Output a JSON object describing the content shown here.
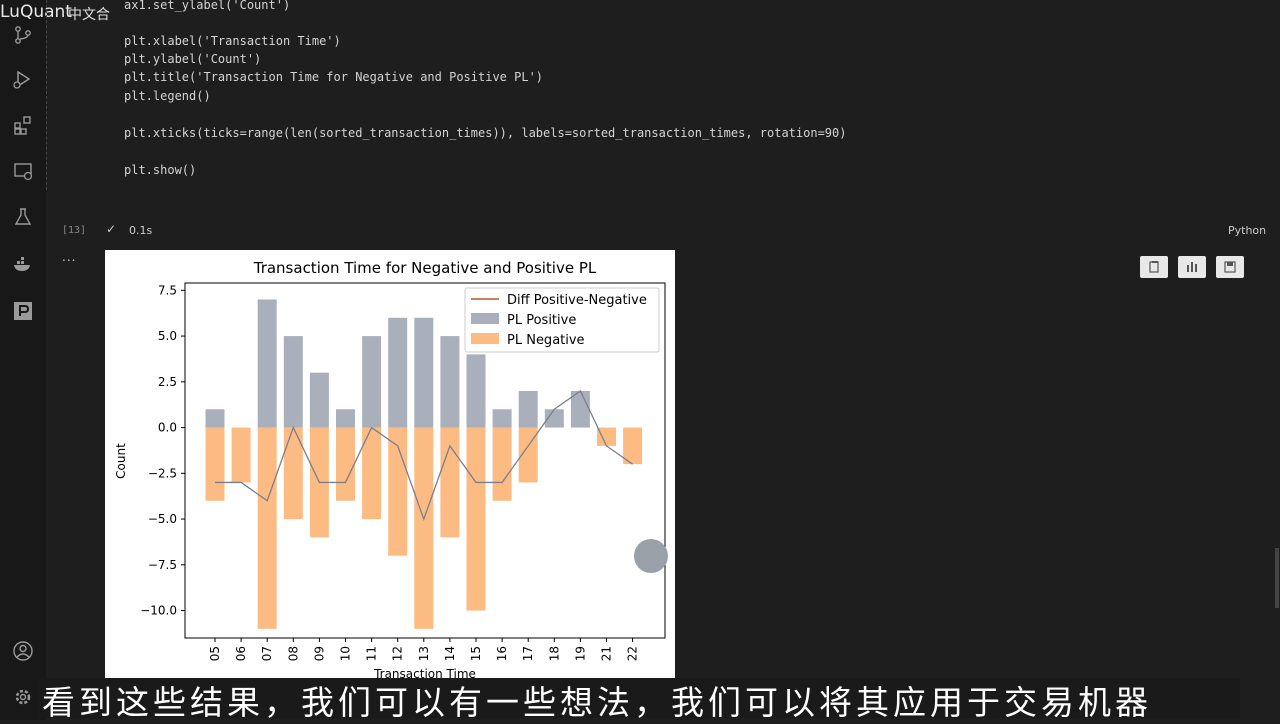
{
  "watermark": {
    "brand": "LuQuant",
    "tag": "中文合"
  },
  "code_lines": [
    "ax1.set_ylabel('Count')",
    "plt.xlabel('Transaction Time')",
    "plt.ylabel('Count')",
    "plt.title('Transaction Time for Negative and Positive PL')",
    "plt.legend()",
    "plt.xticks(ticks=range(len(sorted_transaction_times)), labels=sorted_transaction_times, rotation=90)",
    "plt.show()"
  ],
  "cell": {
    "execution_count": "[13]",
    "status_check": "✓",
    "duration": "0.1s",
    "language": "Python",
    "more": "..."
  },
  "activity_icons": [
    "explorer-icon",
    "search-icon",
    "source-control-icon",
    "run-debug-icon",
    "extensions-icon",
    "remote-explorer-icon",
    "testing-icon",
    "docker-icon",
    "jupyter-icon",
    "account-icon",
    "settings-icon"
  ],
  "output_buttons": [
    "copy-icon",
    "chart-icon",
    "save-icon"
  ],
  "subtitle": "看到这些结果，我们可以有一些想法，我们可以将其应用于交易机器",
  "colors": {
    "positive": "#a9b0bb",
    "negative": "#fdbb84",
    "diff_line": "#7a7f8a",
    "diff_legend": "#b35a28"
  },
  "chart_data": {
    "type": "bar",
    "title": "Transaction Time for Negative and Positive PL",
    "xlabel": "Transaction Time",
    "ylabel": "Count",
    "categories": [
      "05",
      "06",
      "07",
      "08",
      "09",
      "10",
      "11",
      "12",
      "13",
      "14",
      "15",
      "16",
      "17",
      "18",
      "19",
      "21",
      "22"
    ],
    "series": [
      {
        "name": "PL Positive",
        "values": [
          1,
          0,
          7,
          5,
          3,
          1,
          5,
          6,
          6,
          5,
          4,
          1,
          2,
          1,
          2,
          0,
          0
        ]
      },
      {
        "name": "PL Negative",
        "values": [
          -4,
          -3,
          -11,
          -5,
          -6,
          -4,
          -5,
          -7,
          -11,
          -6,
          -10,
          -4,
          -3,
          0,
          0,
          -1,
          -2
        ]
      },
      {
        "name": "Diff Positive-Negative",
        "values": [
          -3,
          -3,
          -4,
          0,
          -3,
          -3,
          0,
          -1,
          -5,
          -1,
          -3,
          -3,
          -1,
          1,
          2,
          -1,
          -2
        ]
      }
    ],
    "ylim": [
      -11.5,
      7.9
    ],
    "yticks": [
      "7.5",
      "5.0",
      "2.5",
      "0.0",
      "−2.5",
      "−5.0",
      "−7.5",
      "−10.0"
    ],
    "ytick_values": [
      7.5,
      5,
      2.5,
      0,
      -2.5,
      -5,
      -7.5,
      -10
    ],
    "legend_position": "top-right",
    "grid": false
  }
}
